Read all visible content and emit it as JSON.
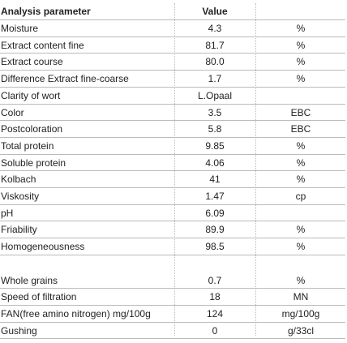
{
  "table": {
    "header": {
      "parameter": "Analysis parameter",
      "value": "Value"
    },
    "rows": [
      {
        "parameter": "Moisture",
        "value": "4.3",
        "unit": "%"
      },
      {
        "parameter": "Extract content fine",
        "value": "81.7",
        "unit": "%"
      },
      {
        "parameter": "Extract course",
        "value": "80.0",
        "unit": "%"
      },
      {
        "parameter": "Difference Extract fine-coarse",
        "value": "1.7",
        "unit": "%"
      },
      {
        "parameter": "Clarity of wort",
        "value": "L.Opaal"
      },
      {
        "parameter": "Color",
        "value": "3.5",
        "unit": "EBC"
      },
      {
        "parameter": "Postcoloration",
        "value": "5.8",
        "unit": "EBC"
      },
      {
        "parameter": "Total protein",
        "value": "9.85",
        "unit": "%"
      },
      {
        "parameter": "Soluble protein",
        "value": "4.06",
        "unit": "%"
      },
      {
        "parameter": "Kolbach",
        "value": "41",
        "unit": "%"
      },
      {
        "parameter": "Viskosity",
        "value": "1.47",
        "unit": "cp"
      },
      {
        "parameter": "pH",
        "value": "6.09"
      },
      {
        "parameter": "Friability",
        "value": "89.9",
        "unit": "%"
      },
      {
        "parameter": "Homogeneousness",
        "value": "98.5",
        "unit": "%"
      },
      {
        "parameter": "Whole grains",
        "value": "0.7",
        "unit": "%"
      },
      {
        "parameter": "Speed of filtration",
        "value": "18",
        "unit": "MN"
      },
      {
        "parameter": "FAN(free amino nitrogen) mg/100g",
        "value": "124",
        "unit": "mg/100g"
      },
      {
        "parameter": "Gushing",
        "value": "0",
        "unit": "g/33cl"
      }
    ]
  }
}
